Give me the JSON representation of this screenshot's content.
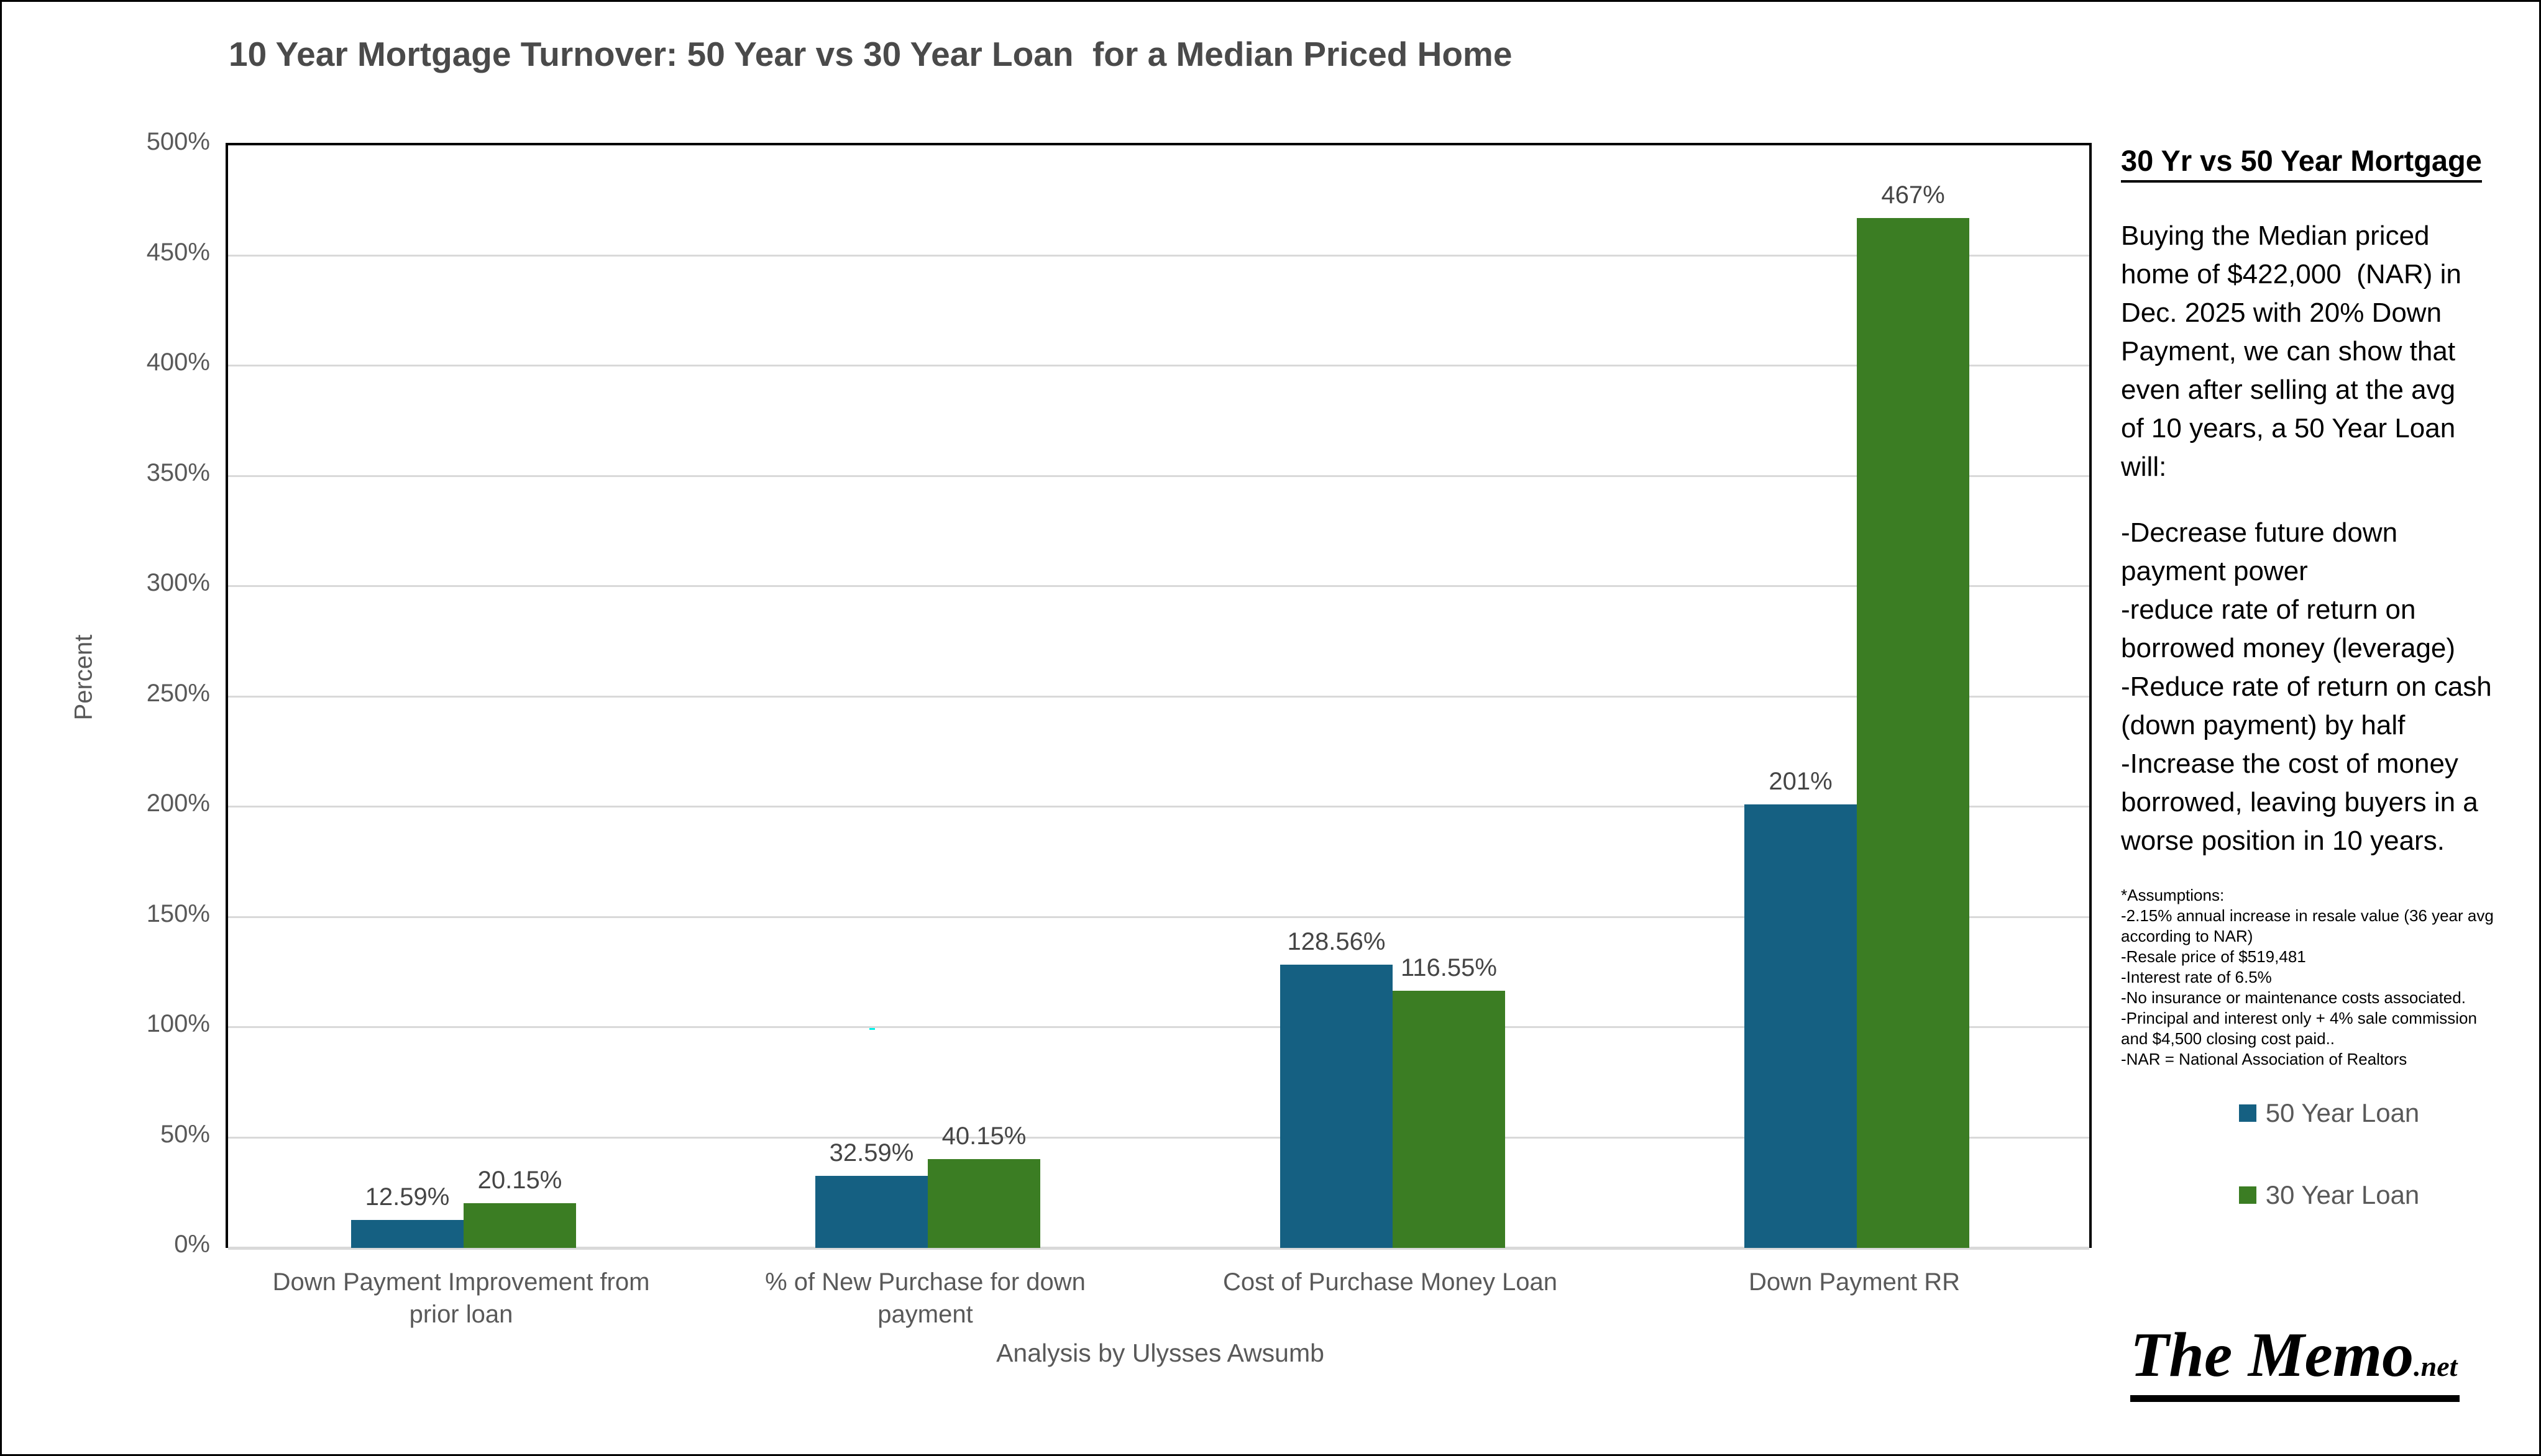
{
  "title": "10 Year Mortgage Turnover: 50 Year vs 30 Year Loan  for a Median Priced Home",
  "chart_data": {
    "type": "bar",
    "title": "10 Year Mortgage Turnover: 50 Year vs 30 Year Loan for a Median Priced Home",
    "categories": [
      "Down Payment Improvement from prior loan",
      "% of New Purchase for down payment",
      "Cost of Purchase Money Loan",
      "Down Payment RR"
    ],
    "series": [
      {
        "name": "50 Year Loan",
        "color": "#156082",
        "values": [
          12.59,
          32.59,
          128.56,
          201
        ],
        "labels": [
          "12.59%",
          "32.59%",
          "128.56%",
          "201%"
        ]
      },
      {
        "name": "30 Year Loan",
        "color": "#3B7D23",
        "values": [
          20.15,
          40.15,
          116.55,
          467
        ],
        "labels": [
          "20.15%",
          "40.15%",
          "116.55%",
          "467%"
        ]
      }
    ],
    "ylabel": "Percent",
    "xlabel": "Analysis by Ulysses Awsumb",
    "ylim": [
      0,
      500
    ],
    "ytick_step": 50,
    "yticks": [
      "0%",
      "50%",
      "100%",
      "150%",
      "200%",
      "250%",
      "300%",
      "350%",
      "400%",
      "450%",
      "500%"
    ],
    "grid": true,
    "legend_position": "right"
  },
  "sidebar": {
    "heading": "30 Yr vs 50 Year Mortgage",
    "paragraph_lines": [
      "Buying the Median priced",
      "home of $422,000  (NAR) in",
      "Dec. 2025 with 20% Down",
      "Payment, we can show that",
      "even after selling at the avg",
      "of 10 years, a 50 Year Loan",
      "will:"
    ],
    "bullet_lines": [
      "-Decrease future down",
      "payment power",
      "-reduce rate of return on",
      "borrowed money (leverage)",
      "-Reduce rate of return on cash",
      "(down payment) by half",
      "-Increase the cost of money",
      "borrowed, leaving buyers in a",
      "worse position in 10 years."
    ],
    "assumptions_lines": [
      "*Assumptions:",
      "-2.15% annual increase in resale value (36 year avg",
      "according to NAR)",
      "-Resale price of $519,481",
      "-Interest rate of 6.5%",
      "-No insurance or maintenance costs associated.",
      "-Principal and interest only + 4% sale commission",
      "and $4,500 closing cost paid..",
      "-NAR = National Association of Realtors"
    ],
    "legend": [
      {
        "label": "50 Year Loan",
        "color": "#156082"
      },
      {
        "label": "30 Year Loan",
        "color": "#3B7D23"
      }
    ]
  },
  "logo": {
    "text": "The Memo",
    "suffix": ".net"
  },
  "colors": {
    "grid": "#d9d9d9",
    "axis_text": "#595959",
    "data_label": "#454545",
    "artifact": "#00f2ea"
  }
}
